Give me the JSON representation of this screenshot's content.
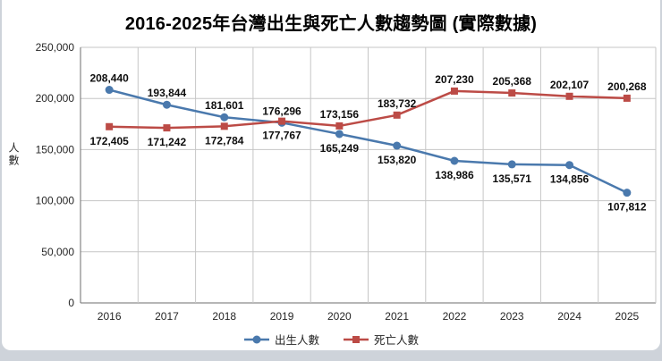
{
  "chart_data": {
    "type": "line",
    "title": "2016-2025年台灣出生與死亡人數趨勢圖 (實際數據)",
    "ylabel": "人數",
    "categories": [
      "2016",
      "2017",
      "2018",
      "2019",
      "2020",
      "2021",
      "2022",
      "2023",
      "2024",
      "2025"
    ],
    "series": [
      {
        "name": "出生人數",
        "color": "#4a79ad",
        "marker": "circle",
        "values": [
          208440,
          193844,
          181601,
          176296,
          165249,
          153820,
          138986,
          135571,
          134856,
          107812
        ],
        "labels_above": [
          true,
          true,
          true,
          true,
          false,
          false,
          false,
          false,
          false,
          false
        ]
      },
      {
        "name": "死亡人數",
        "color": "#bc4b46",
        "marker": "square",
        "values": [
          172405,
          171242,
          172784,
          177767,
          173156,
          183732,
          207230,
          205368,
          202107,
          200268
        ],
        "labels_above": [
          false,
          false,
          false,
          false,
          true,
          true,
          true,
          true,
          true,
          true
        ]
      }
    ],
    "ylim": [
      0,
      250000
    ],
    "yticks": [
      0,
      50000,
      100000,
      150000,
      200000,
      250000
    ],
    "grid": "both",
    "legend_position": "bottom",
    "axis_color": "#6e6e6e",
    "gridline_color": "#c6c6c6"
  }
}
